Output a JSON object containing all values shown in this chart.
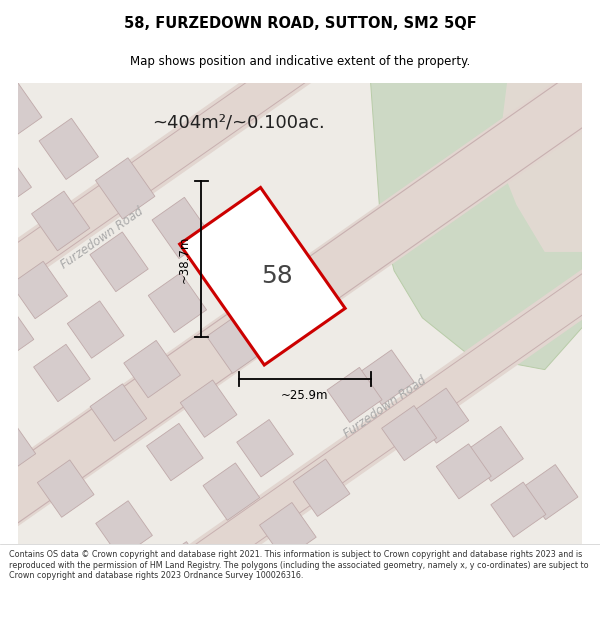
{
  "title": "58, FURZEDOWN ROAD, SUTTON, SM2 5QF",
  "subtitle": "Map shows position and indicative extent of the property.",
  "area_text": "~404m²/~0.100ac.",
  "width_label": "~25.9m",
  "height_label": "~38.7m",
  "number_label": "58",
  "footer_text": "Contains OS data © Crown copyright and database right 2021. This information is subject to Crown copyright and database rights 2023 and is reproduced with the permission of HM Land Registry. The polygons (including the associated geometry, namely x, y co-ordinates) are subject to Crown copyright and database rights 2023 Ordnance Survey 100026316.",
  "bg_color": "#ffffff",
  "map_bg": "#eeebe6",
  "road_stripe_color": "#e2d6d0",
  "plot_line_color": "#cc0000",
  "plot_fill": "#ffffff",
  "green_area_color": "#cdd9c5",
  "pink_area_color": "#f0dada",
  "building_fill": "#d6cccc",
  "building_stroke": "#c0aaaa",
  "road_line_color": "#c8b0b0",
  "title_color": "#000000",
  "footer_color": "#333333",
  "street_label_color": "#aaaaaa",
  "map_border_color": "#cccccc"
}
